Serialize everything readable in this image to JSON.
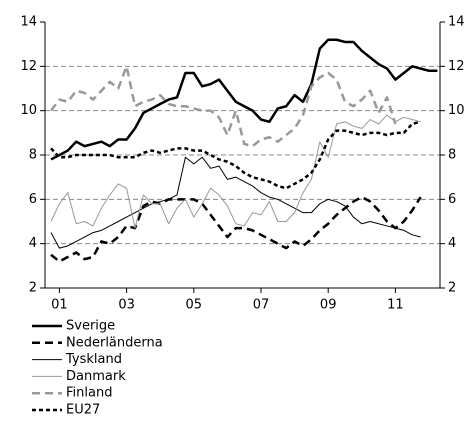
{
  "chart_data": {
    "type": "line",
    "categories": [
      null,
      "01",
      null,
      null,
      null,
      null,
      null,
      null,
      null,
      "03",
      null,
      null,
      null,
      null,
      null,
      null,
      null,
      "05",
      null,
      null,
      null,
      null,
      null,
      null,
      null,
      "07",
      null,
      null,
      null,
      null,
      null,
      null,
      null,
      "09",
      null,
      null,
      null,
      null,
      null,
      null,
      null,
      "11",
      null,
      null,
      null,
      null,
      null
    ],
    "ylim": [
      2,
      14
    ],
    "yticks": [
      2,
      4,
      6,
      8,
      10,
      12,
      14
    ],
    "y2lim": [
      2,
      14
    ],
    "y2ticks": [
      2,
      4,
      6,
      8,
      10,
      12,
      14
    ],
    "grid": true,
    "series": [
      {
        "name": "Sverige",
        "color": "#000000",
        "width": 2.5,
        "dash": "none",
        "values": [
          7.8,
          8.0,
          8.2,
          8.6,
          8.4,
          8.5,
          8.6,
          8.4,
          8.7,
          8.7,
          9.2,
          9.9,
          10.1,
          10.3,
          10.5,
          10.6,
          11.7,
          11.7,
          11.1,
          11.2,
          11.4,
          10.9,
          10.4,
          10.2,
          10.0,
          9.6,
          9.5,
          10.1,
          10.2,
          10.7,
          10.4,
          11.2,
          12.8,
          13.2,
          13.2,
          13.1,
          13.1,
          12.7,
          12.4,
          12.1,
          11.9,
          11.4,
          11.7,
          12.0,
          11.9,
          11.8,
          11.8
        ]
      },
      {
        "name": "Nederländerna",
        "color": "#000000",
        "width": 2.5,
        "dash": "8,5",
        "values": [
          3.5,
          3.2,
          3.4,
          3.6,
          3.3,
          3.4,
          4.1,
          4.0,
          4.3,
          4.8,
          4.7,
          5.7,
          5.9,
          5.8,
          6.0,
          6.0,
          6.0,
          6.0,
          5.8,
          5.3,
          4.8,
          4.3,
          4.7,
          4.7,
          4.6,
          4.4,
          4.2,
          4.0,
          3.8,
          4.1,
          3.9,
          4.2,
          4.6,
          4.9,
          5.3,
          5.6,
          5.9,
          6.1,
          5.9,
          5.5,
          5.0,
          4.7,
          5.0,
          5.5,
          6.1,
          null,
          null
        ]
      },
      {
        "name": "Tyskland",
        "color": "#000000",
        "width": 1,
        "dash": "none",
        "values": [
          4.5,
          3.8,
          3.9,
          4.1,
          4.3,
          4.5,
          4.6,
          4.8,
          5.0,
          5.2,
          5.4,
          5.6,
          5.8,
          5.9,
          6.0,
          6.2,
          7.9,
          7.6,
          7.9,
          7.4,
          7.5,
          6.9,
          7.0,
          6.8,
          6.6,
          6.3,
          6.1,
          6.0,
          5.8,
          5.6,
          5.4,
          5.4,
          5.8,
          6.0,
          5.9,
          5.7,
          5.2,
          4.9,
          5.0,
          4.9,
          4.8,
          4.7,
          4.6,
          4.4,
          4.3,
          null,
          null
        ]
      },
      {
        "name": "Danmark",
        "color": "#999999",
        "width": 1,
        "dash": "none",
        "values": [
          5.0,
          5.8,
          6.3,
          4.9,
          5.0,
          4.8,
          5.6,
          6.2,
          6.7,
          6.5,
          4.7,
          6.2,
          5.8,
          5.8,
          4.9,
          5.6,
          6.0,
          5.2,
          5.8,
          6.5,
          6.2,
          5.7,
          4.9,
          4.8,
          5.4,
          5.3,
          5.9,
          5.0,
          5.0,
          5.4,
          6.3,
          6.9,
          8.6,
          7.9,
          9.4,
          9.5,
          9.3,
          9.2,
          9.6,
          9.4,
          9.8,
          9.5,
          9.7,
          9.6,
          9.5,
          null,
          null
        ]
      },
      {
        "name": "Finland",
        "color": "#999999",
        "width": 2.5,
        "dash": "8,5",
        "values": [
          10.0,
          10.5,
          10.4,
          10.9,
          10.8,
          10.5,
          10.9,
          11.3,
          11.0,
          12.0,
          10.2,
          10.4,
          10.5,
          10.7,
          10.3,
          10.2,
          10.2,
          10.1,
          10.0,
          10.0,
          9.7,
          8.9,
          10.0,
          8.5,
          8.4,
          8.7,
          8.8,
          8.6,
          8.9,
          9.2,
          9.8,
          11.1,
          11.5,
          11.7,
          11.4,
          10.4,
          10.2,
          10.5,
          10.9,
          9.9,
          10.6,
          9.4,
          null,
          null,
          null,
          null,
          null
        ]
      },
      {
        "name": "EU27",
        "color": "#000000",
        "width": 2.5,
        "dash": "4,3",
        "values": [
          8.3,
          7.9,
          7.9,
          8.0,
          8.0,
          8.0,
          8.0,
          8.0,
          7.9,
          7.9,
          7.9,
          8.1,
          8.2,
          8.1,
          8.2,
          8.3,
          8.3,
          8.2,
          8.2,
          8.0,
          7.8,
          7.7,
          7.5,
          7.2,
          7.0,
          6.9,
          6.8,
          6.6,
          6.5,
          6.7,
          6.9,
          7.2,
          7.8,
          8.7,
          9.1,
          9.1,
          9.0,
          8.9,
          9.0,
          9.0,
          8.9,
          9.0,
          9.0,
          9.4,
          9.5,
          null,
          null
        ]
      }
    ]
  }
}
